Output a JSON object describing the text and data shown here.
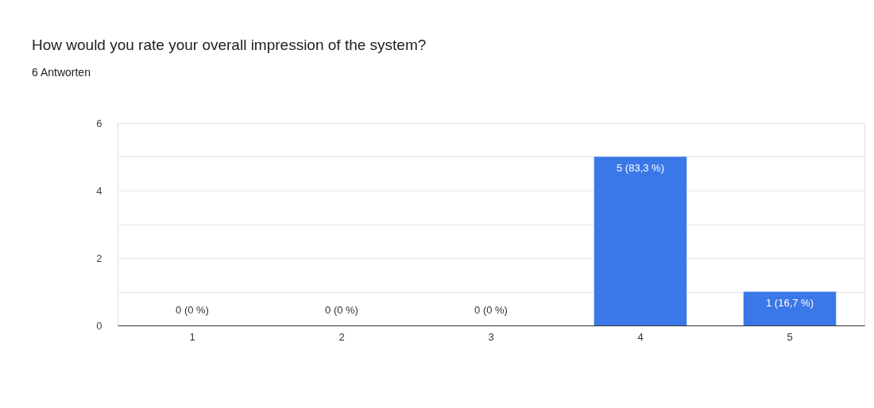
{
  "chart_data": {
    "type": "bar",
    "title": "How would you rate your overall impression of the system?",
    "subtitle": "6 Antworten",
    "categories": [
      "1",
      "2",
      "3",
      "4",
      "5"
    ],
    "values": [
      0,
      0,
      0,
      5,
      1
    ],
    "color": "#3b78e7",
    "value_labels": [
      "0 (0 %)",
      "0 (0 %)",
      "0 (0 %)",
      "5 (83,3 %)",
      "1 (16,7 %)"
    ],
    "ylim": [
      0,
      6
    ],
    "yticks": [
      0,
      {
        "value": 1,
        "label": null
      },
      2,
      {
        "value": 3,
        "label": null
      },
      4,
      {
        "value": 5,
        "label": null
      },
      6
    ],
    "grid": "y"
  }
}
